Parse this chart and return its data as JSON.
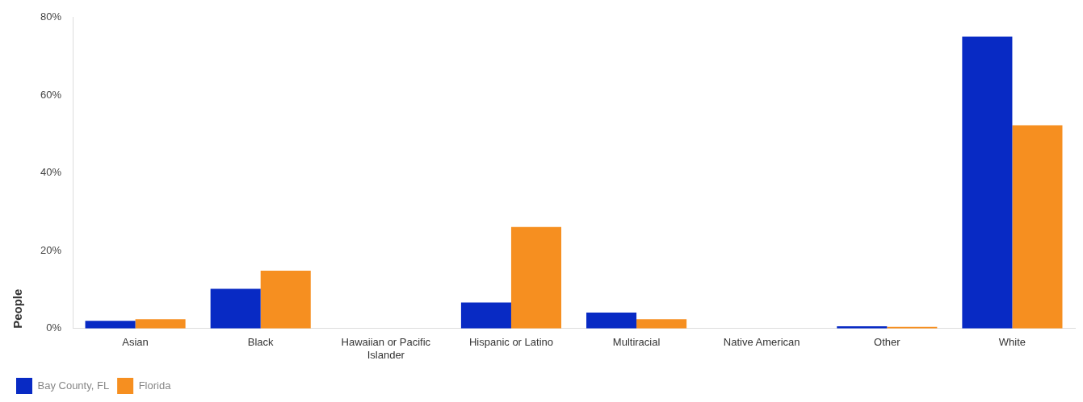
{
  "chart_data": {
    "type": "bar",
    "ylabel": "People",
    "categories": [
      "Asian",
      "Black",
      "Hawaiian or Pacific Islander",
      "Hispanic or Latino",
      "Multiracial",
      "Native American",
      "Other",
      "White"
    ],
    "series": [
      {
        "name": "Bay County, FL",
        "color": "#082ac4",
        "values": [
          2.0,
          10.2,
          0,
          6.7,
          4.1,
          0,
          0.6,
          75.1
        ]
      },
      {
        "name": "Florida",
        "color": "#f68f20",
        "values": [
          2.4,
          14.9,
          0,
          26.1,
          2.4,
          0,
          0.4,
          52.3
        ]
      }
    ],
    "ylim": [
      0,
      80
    ],
    "yticks": [
      {
        "value": 0,
        "label": "0%"
      },
      {
        "value": 20,
        "label": "20%"
      },
      {
        "value": 40,
        "label": "40%"
      },
      {
        "value": 60,
        "label": "60%"
      },
      {
        "value": 80,
        "label": "80%"
      }
    ],
    "grid": false,
    "legend": "bottom left"
  }
}
